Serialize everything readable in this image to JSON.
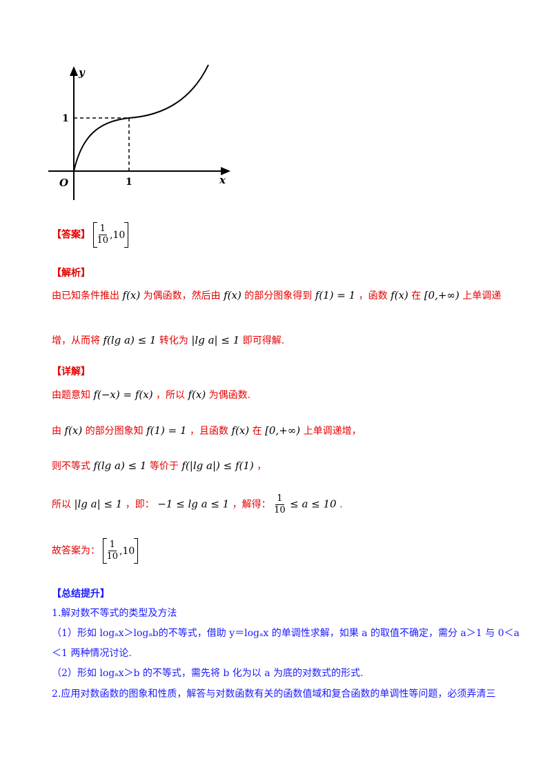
{
  "graph": {
    "y_label": "y",
    "x_label": "x",
    "origin_label": "O",
    "x_tick": "1",
    "y_tick": "1"
  },
  "answer": {
    "label": "【答案】",
    "frac_num": "1",
    "frac_den": "10",
    "rest": ",10"
  },
  "analysis": {
    "heading": "【解析】",
    "l1_a": "由已知条件推出",
    "l1_fx": "f(x)",
    "l1_b": "为偶函数，然后由",
    "l1_fx2": "f(x)",
    "l1_c": "的部分图象得到",
    "l1_f1": "f(1) = 1",
    "l1_d": "，函数",
    "l1_fx3": "f(x)",
    "l1_e": "在",
    "l1_int": "[0,+∞)",
    "l1_f": "上单调递",
    "l2_a": "增，从而将",
    "l2_m1": "f(lg a) ≤ 1",
    "l2_b": "转化为",
    "l2_m2": "|lg a| ≤ 1",
    "l2_c": "即可得解."
  },
  "detail": {
    "heading": "【详解】",
    "d1_a": "由题意知",
    "d1_m": "f(−x) = f(x)",
    "d1_b": "，所以",
    "d1_fx": "f(x)",
    "d1_c": "为偶函数.",
    "d2_a": "由",
    "d2_fx": "f(x)",
    "d2_b": "的部分图象知",
    "d2_f1": "f(1) = 1",
    "d2_c": "，且函数",
    "d2_fx2": "f(x)",
    "d2_d": "在",
    "d2_int": "[0,+∞)",
    "d2_e": "上单调递增，",
    "d3_a": "则不等式",
    "d3_m1": "f(lg a) ≤ 1",
    "d3_b": "等价于",
    "d3_m2": "f(|lg a|) ≤ f(1)",
    "d3_c": "，",
    "d4_a": "所以",
    "d4_m1": "|lg a| ≤ 1",
    "d4_b": "，即：",
    "d4_m2": "−1 ≤ lg a ≤ 1",
    "d4_c": "，解得：",
    "d4_frac_num": "1",
    "d4_frac_den": "10",
    "d4_m3": "≤ a ≤ 10",
    "d4_d": ".",
    "d5_a": "故答案为：",
    "d5_frac_num": "1",
    "d5_frac_den": "10",
    "d5_rest": ",10"
  },
  "summary": {
    "heading": "【总结提升】",
    "s1": "1.解对数不等式的类型及方法",
    "s2": "（1）形如 logₐx＞logₐb的不等式，借助 y＝logₐx 的单调性求解，如果 a 的取值不确定，需分 a＞1 与 0＜a",
    "s3": "＜1 两种情况讨论.",
    "s4": "（2）形如 logₐx＞b 的不等式，需先将 b 化为以 a 为底的对数式的形式.",
    "s5": "2.应用对数函数的图象和性质，解答与对数函数有关的函数值域和复合函数的单调性等问题，必须弄清三"
  }
}
